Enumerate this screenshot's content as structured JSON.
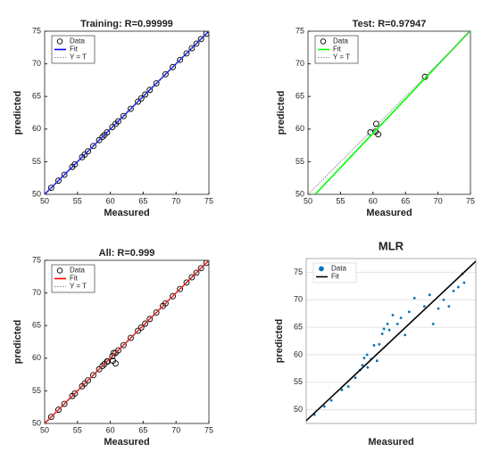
{
  "chart_data": [
    {
      "type": "scatter",
      "title": "Training: R=0.99999",
      "xlabel": "Measured",
      "ylabel": "predicted",
      "xlim": [
        50,
        75
      ],
      "ylim": [
        50,
        75
      ],
      "xticks": [
        50,
        55,
        60,
        65,
        70,
        75
      ],
      "yticks": [
        50,
        55,
        60,
        65,
        70,
        75
      ],
      "grid": false,
      "legend": "northwest",
      "series": [
        {
          "name": "Data",
          "color": "#000000",
          "marker": "circle",
          "x": [
            49.8,
            51.0,
            52.1,
            53.0,
            54.2,
            54.6,
            55.7,
            56.1,
            56.6,
            57.4,
            58.3,
            58.8,
            59.1,
            59.5,
            60.3,
            60.8,
            61.2,
            62.0,
            63.1,
            64.2,
            64.7,
            65.3,
            66.0,
            67.0,
            68.4,
            69.5,
            70.6,
            71.6,
            72.4,
            73.1,
            73.8,
            74.6,
            75.2
          ],
          "values": [
            49.8,
            51.0,
            52.1,
            53.0,
            54.2,
            54.6,
            55.7,
            56.1,
            56.6,
            57.4,
            58.3,
            58.8,
            59.1,
            59.5,
            60.3,
            60.8,
            61.2,
            62.0,
            63.1,
            64.2,
            64.7,
            65.3,
            66.0,
            67.0,
            68.4,
            69.5,
            70.6,
            71.6,
            72.4,
            73.1,
            73.8,
            74.6,
            75.2
          ]
        },
        {
          "name": "Fit",
          "color": "#0000ff",
          "line": "solid",
          "x": [
            49.8,
            75.2
          ],
          "values": [
            49.8,
            75.2
          ]
        },
        {
          "name": "Y = T",
          "color": "#888888",
          "line": "dotted",
          "x": [
            50,
            75
          ],
          "values": [
            50,
            75
          ]
        }
      ]
    },
    {
      "type": "scatter",
      "title": "Test: R=0.97947",
      "xlabel": "Measured",
      "ylabel": "predicted",
      "xlim": [
        50,
        75
      ],
      "ylim": [
        50,
        75
      ],
      "xticks": [
        50,
        55,
        60,
        65,
        70,
        75
      ],
      "yticks": [
        50,
        55,
        60,
        65,
        70,
        75
      ],
      "grid": false,
      "legend": "northwest",
      "series": [
        {
          "name": "Data",
          "color": "#000000",
          "marker": "circle",
          "x": [
            59.6,
            60.5,
            60.4,
            60.8,
            68.0
          ],
          "values": [
            59.5,
            60.8,
            59.6,
            59.2,
            68.0
          ]
        },
        {
          "name": "Fit",
          "color": "#00ff00",
          "line": "solid",
          "x": [
            51.1,
            74.9
          ],
          "values": [
            50,
            75
          ]
        },
        {
          "name": "Y = T",
          "color": "#888888",
          "line": "dotted",
          "x": [
            50,
            75
          ],
          "values": [
            50,
            75
          ]
        }
      ]
    },
    {
      "type": "scatter",
      "title": "All: R=0.999",
      "xlabel": "Measured",
      "ylabel": "predicted",
      "xlim": [
        50,
        75
      ],
      "ylim": [
        50,
        75
      ],
      "xticks": [
        50,
        55,
        60,
        65,
        70,
        75
      ],
      "yticks": [
        50,
        55,
        60,
        65,
        70,
        75
      ],
      "grid": false,
      "legend": "northwest",
      "series": [
        {
          "name": "Data",
          "color": "#000000",
          "marker": "circle",
          "x": [
            49.8,
            51.0,
            52.1,
            53.0,
            54.2,
            54.6,
            55.7,
            56.1,
            56.6,
            57.4,
            58.3,
            58.8,
            59.1,
            59.5,
            60.3,
            60.8,
            61.2,
            62.0,
            63.1,
            64.2,
            64.7,
            65.3,
            66.0,
            67.0,
            68.4,
            69.5,
            70.6,
            71.6,
            72.4,
            73.1,
            73.8,
            74.6,
            75.2,
            59.6,
            60.5,
            60.4,
            60.8,
            68.0
          ],
          "values": [
            49.8,
            51.0,
            52.1,
            53.0,
            54.2,
            54.6,
            55.7,
            56.1,
            56.6,
            57.4,
            58.3,
            58.8,
            59.1,
            59.5,
            60.3,
            60.8,
            61.2,
            62.0,
            63.1,
            64.2,
            64.7,
            65.3,
            66.0,
            67.0,
            68.4,
            69.5,
            70.6,
            71.6,
            72.4,
            73.1,
            73.8,
            74.6,
            75.2,
            59.5,
            60.8,
            59.6,
            59.2,
            68.0
          ]
        },
        {
          "name": "Fit",
          "color": "#ff0000",
          "line": "solid",
          "x": [
            49.8,
            75.3
          ],
          "values": [
            49.8,
            75.3
          ]
        },
        {
          "name": "Y = T",
          "color": "#888888",
          "line": "dotted",
          "x": [
            50,
            75
          ],
          "values": [
            50,
            75
          ]
        }
      ]
    },
    {
      "type": "scatter",
      "title": "MLR",
      "xlabel": "Measured",
      "ylabel": "predicted",
      "xlim": [
        48,
        77
      ],
      "ylim": [
        47.5,
        77.5
      ],
      "yticks": [
        50,
        55,
        60,
        65,
        70,
        75
      ],
      "grid": true,
      "legend": "northwest",
      "series": [
        {
          "name": "Data",
          "color": "#0072bd",
          "marker": "dot",
          "x": [
            49.4,
            51.1,
            52.3,
            54.1,
            55.2,
            56.4,
            57.2,
            57.6,
            57.9,
            58.4,
            58.5,
            59.1,
            59.6,
            60.1,
            60.5,
            61.0,
            61.3,
            61.9,
            62.2,
            62.8,
            63.6,
            64.2,
            64.9,
            65.6,
            66.5,
            68.2,
            69.1,
            69.7,
            70.6,
            71.5,
            72.4,
            73.2,
            74.0,
            74.7,
            75.0
          ],
          "values": [
            49.1,
            50.6,
            51.7,
            53.6,
            54.2,
            55.8,
            57.2,
            58.1,
            59.4,
            60.0,
            57.7,
            59.2,
            61.7,
            58.9,
            61.9,
            63.8,
            64.7,
            65.6,
            64.5,
            67.2,
            65.6,
            66.7,
            63.6,
            67.8,
            70.3,
            68.8,
            70.9,
            65.6,
            68.4,
            70.0,
            68.8,
            71.6,
            72.3,
            74.7,
            73.1
          ]
        },
        {
          "name": "Fit",
          "color": "#000000",
          "line": "solid",
          "x": [
            48,
            77
          ],
          "values": [
            48,
            77
          ]
        }
      ]
    }
  ]
}
